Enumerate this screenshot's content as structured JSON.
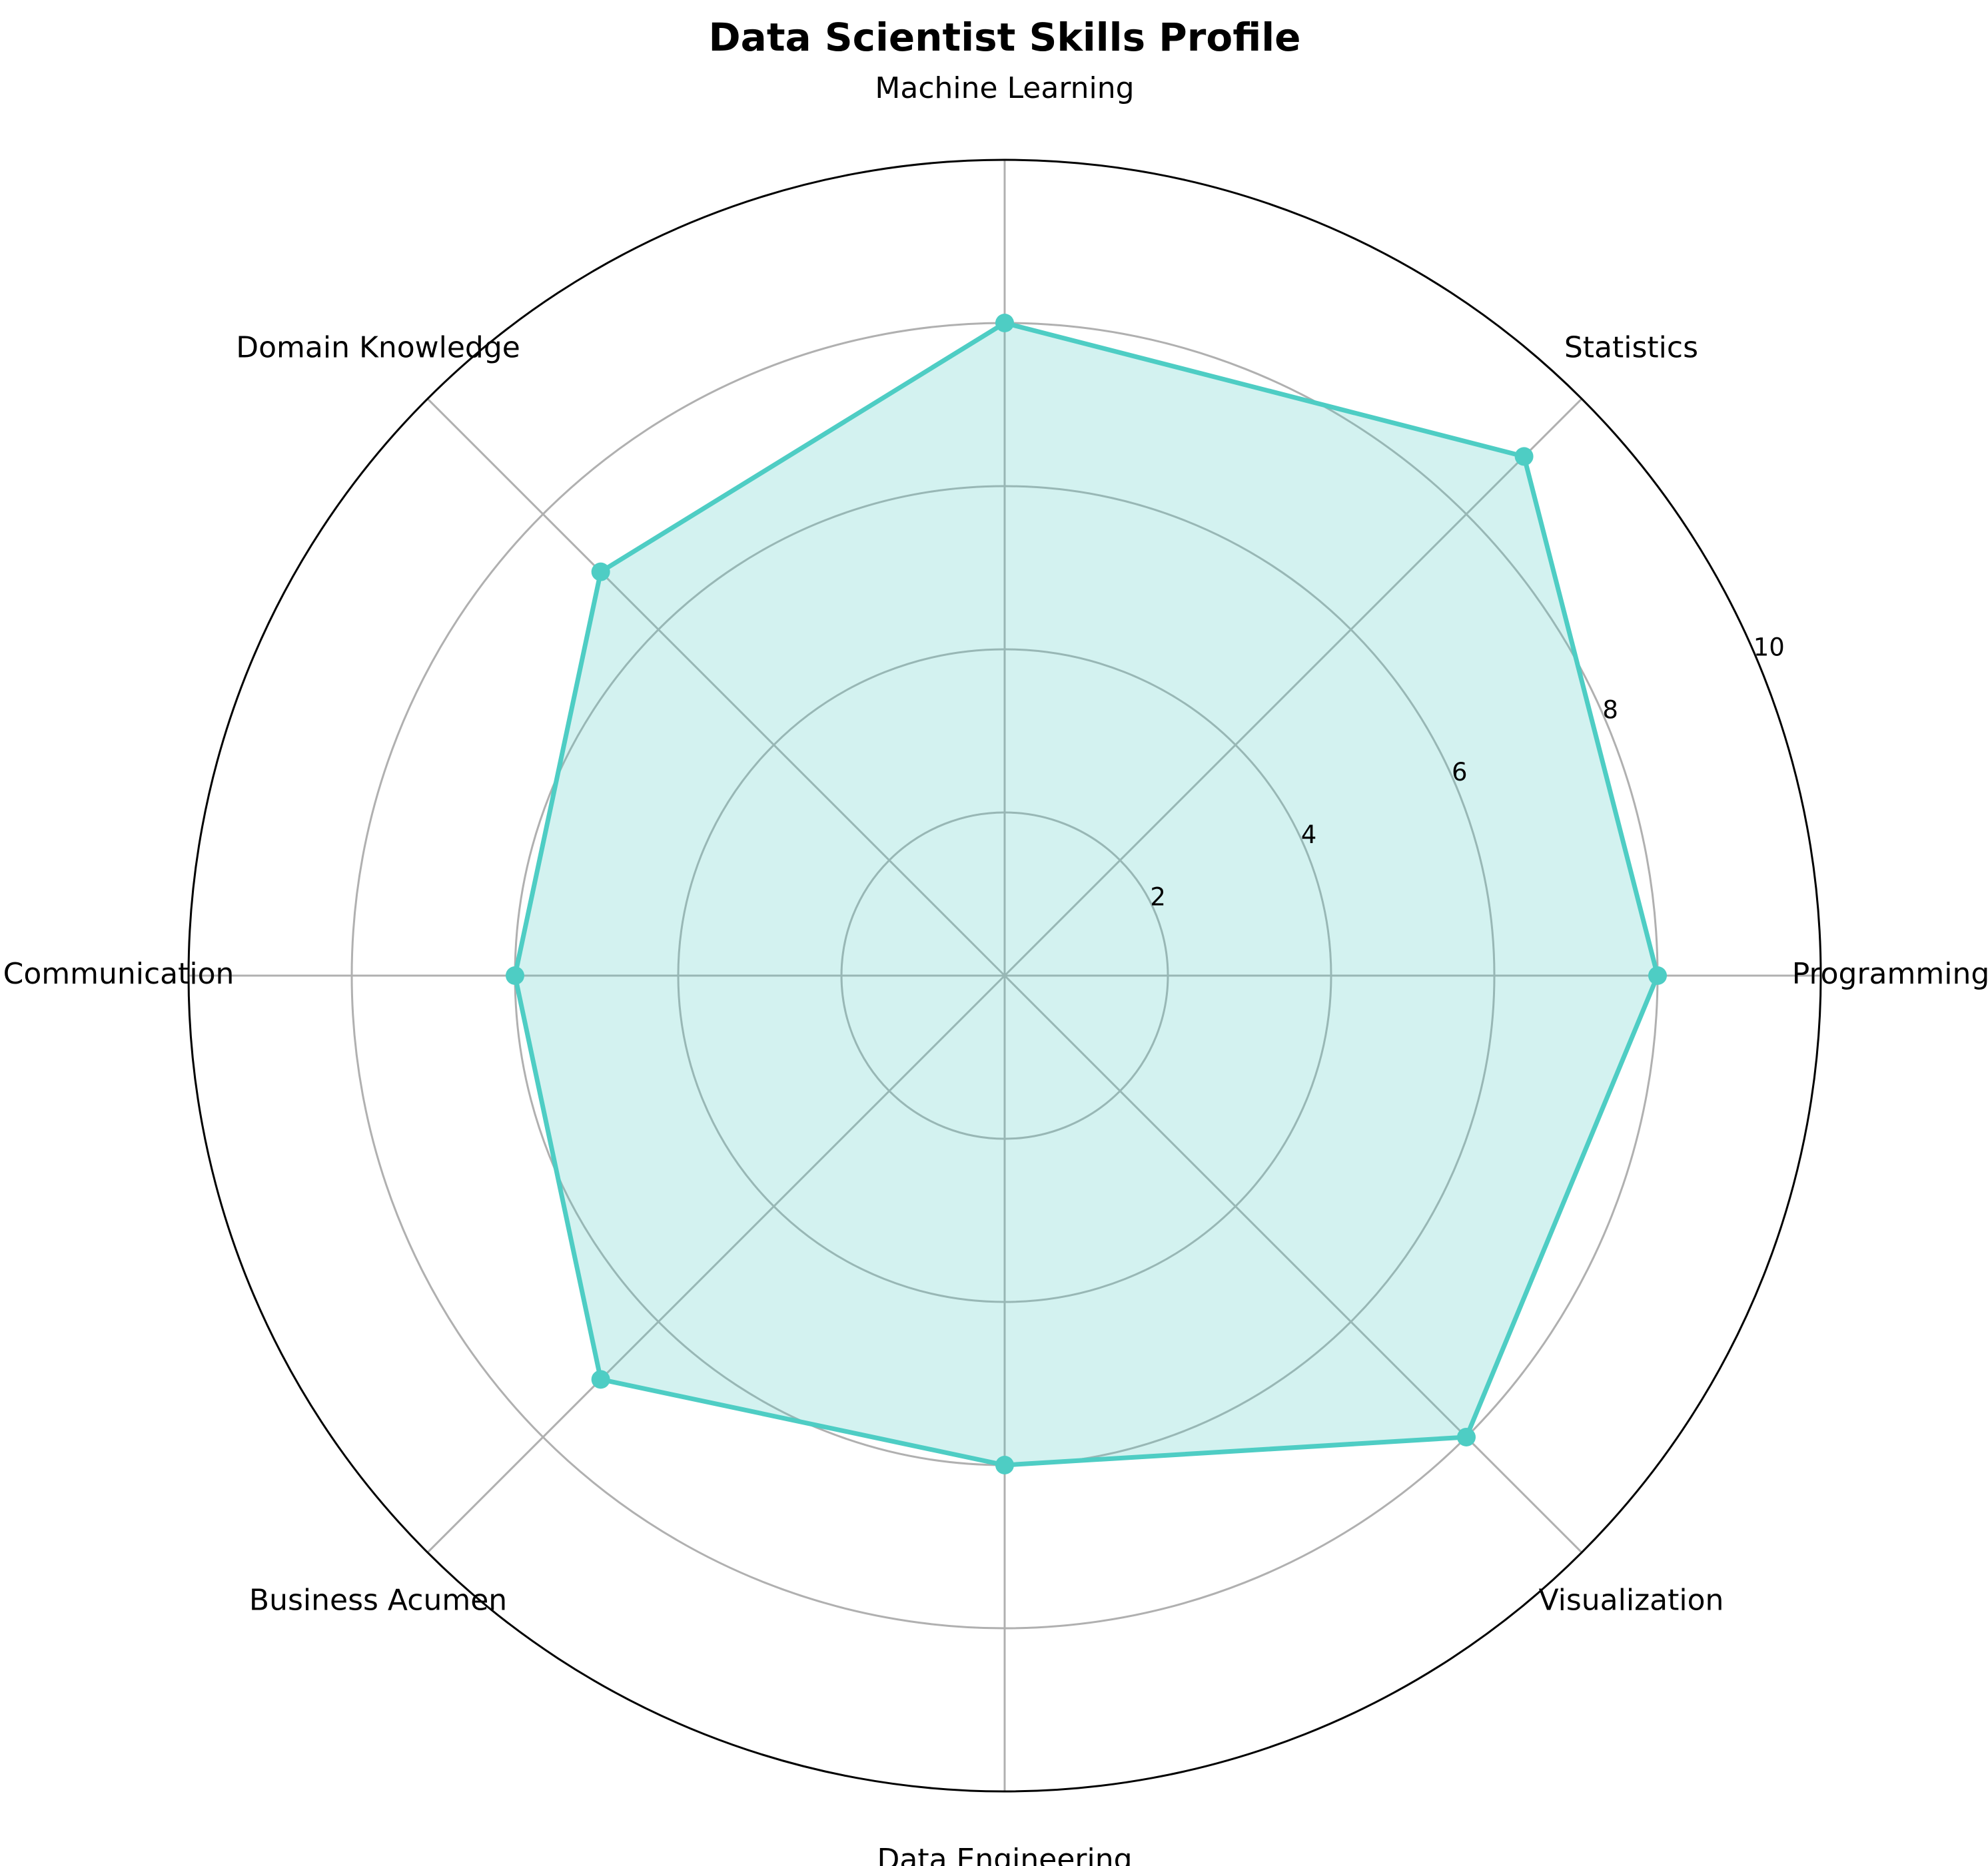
{
  "chart_data": {
    "type": "radar",
    "title": "Data Scientist Skills Profile",
    "categories": [
      "Programming",
      "Statistics",
      "Machine Learning",
      "Domain Knowledge",
      "Communication",
      "Business Acumen",
      "Data Engineering",
      "Visualization"
    ],
    "values": [
      8,
      9,
      8,
      7,
      6,
      7,
      6,
      8
    ],
    "rlim": [
      0,
      10
    ],
    "radial_ticks": [
      2,
      4,
      6,
      8,
      10
    ],
    "grid": true,
    "color": "#4ECDC4",
    "fill_color": "#4ECDC4"
  }
}
